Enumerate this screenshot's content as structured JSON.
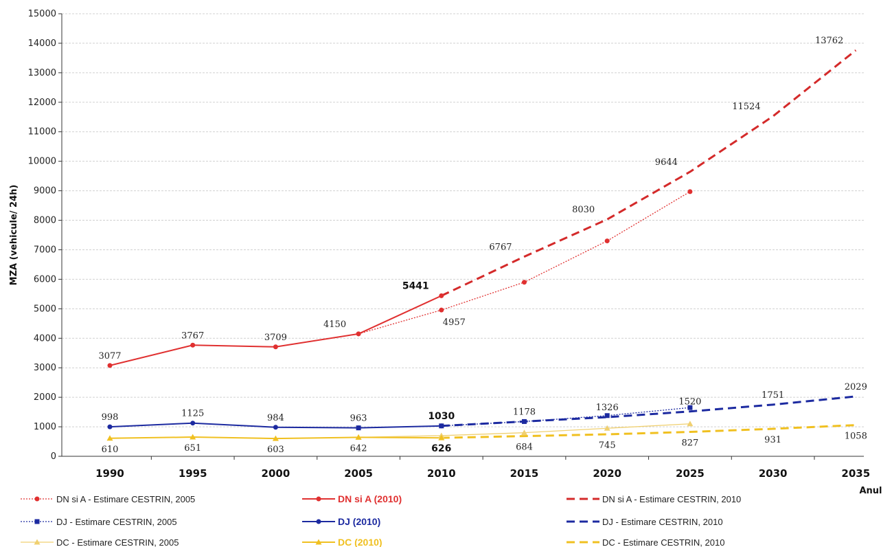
{
  "chart_data": {
    "type": "line",
    "ylabel": "MZA (vehicule/ 24h)",
    "xlabel": "Anul",
    "x": [
      1990,
      1995,
      2000,
      2005,
      2010,
      2015,
      2020,
      2025,
      2030,
      2035
    ],
    "x_tick_labels": [
      "1990",
      "1995",
      "2000",
      "2005",
      "2010",
      "2015",
      "2020",
      "2025",
      "2030",
      "2035"
    ],
    "ylim": [
      0,
      15000
    ],
    "y_ticks": [
      0,
      1000,
      2000,
      3000,
      4000,
      5000,
      6000,
      7000,
      8000,
      9000,
      10000,
      11000,
      12000,
      13000,
      14000,
      15000
    ],
    "y_tick_labels": [
      "0",
      "1000",
      "2000",
      "3000",
      "4000",
      "5000",
      "6000",
      "7000",
      "8000",
      "9000",
      "10000",
      "11000",
      "12000",
      "13000",
      "14000",
      "15000"
    ],
    "grid": true,
    "legend_position": "bottom",
    "series": [
      {
        "name": "DN si A - Estimare CESTRIN, 2005",
        "color": "#e03030",
        "style": "dotted",
        "marker": "circle",
        "x": [
          2005,
          2010,
          2015,
          2020,
          2025
        ],
        "values": [
          4150,
          4957,
          5900,
          7300,
          8970
        ]
      },
      {
        "name": "DN si A (2010)",
        "color": "#e03030",
        "style": "solid",
        "marker": "circle",
        "x": [
          1990,
          1995,
          2000,
          2005,
          2010
        ],
        "values": [
          3077,
          3767,
          3709,
          4150,
          5441
        ]
      },
      {
        "name": "DN si A - Estimare CESTRIN, 2010",
        "color": "#d42a2a",
        "style": "dashed",
        "marker": "none",
        "x": [
          2010,
          2015,
          2020,
          2025,
          2030,
          2035
        ],
        "values": [
          5441,
          6767,
          8030,
          9644,
          11524,
          13762
        ]
      },
      {
        "name": "DJ - Estimare CESTRIN, 2005",
        "color": "#1c2aa0",
        "style": "dotted",
        "marker": "square",
        "x": [
          2005,
          2010,
          2015,
          2020,
          2025
        ],
        "values": [
          963,
          1030,
          1178,
          1380,
          1650
        ]
      },
      {
        "name": "DJ (2010)",
        "color": "#1c2aa0",
        "style": "solid",
        "marker": "circle",
        "x": [
          1990,
          1995,
          2000,
          2005,
          2010
        ],
        "values": [
          998,
          1125,
          984,
          963,
          1030
        ]
      },
      {
        "name": "DJ - Estimare CESTRIN, 2010",
        "color": "#1c2aa0",
        "style": "dashed",
        "marker": "none",
        "x": [
          2010,
          2015,
          2020,
          2025,
          2030,
          2035
        ],
        "values": [
          1030,
          1178,
          1326,
          1520,
          1751,
          2029
        ]
      },
      {
        "name": "DC - Estimare CESTRIN, 2005",
        "color": "#f0d070",
        "style": "solid-thin",
        "marker": "triangle",
        "x": [
          2005,
          2010,
          2015,
          2020,
          2025
        ],
        "values": [
          642,
          700,
          800,
          950,
          1100
        ]
      },
      {
        "name": "DC (2010)",
        "color": "#f0c020",
        "style": "solid",
        "marker": "triangle",
        "x": [
          1990,
          1995,
          2000,
          2005,
          2010
        ],
        "values": [
          610,
          651,
          603,
          642,
          626
        ]
      },
      {
        "name": "DC - Estimare CESTRIN, 2010",
        "color": "#f0c020",
        "style": "dashed",
        "marker": "none",
        "x": [
          2010,
          2015,
          2020,
          2025,
          2030,
          2035
        ],
        "values": [
          626,
          684,
          745,
          827,
          931,
          1058
        ]
      }
    ],
    "annotations": [
      {
        "text": "3077",
        "x": 1990,
        "y": 3077,
        "pos": "above"
      },
      {
        "text": "3767",
        "x": 1995,
        "y": 3767,
        "pos": "above"
      },
      {
        "text": "3709",
        "x": 2000,
        "y": 3709,
        "pos": "above"
      },
      {
        "text": "4150",
        "x": 2005,
        "y": 4150,
        "pos": "above-left"
      },
      {
        "text": "5441",
        "x": 2010,
        "y": 5441,
        "pos": "above-left",
        "bold": true
      },
      {
        "text": "4957",
        "x": 2010,
        "y": 4957,
        "pos": "below-right"
      },
      {
        "text": "6767",
        "x": 2015,
        "y": 6767,
        "pos": "above-left"
      },
      {
        "text": "8030",
        "x": 2020,
        "y": 8030,
        "pos": "above-left"
      },
      {
        "text": "9644",
        "x": 2025,
        "y": 9644,
        "pos": "above-left"
      },
      {
        "text": "11524",
        "x": 2030,
        "y": 11524,
        "pos": "above-left"
      },
      {
        "text": "13762",
        "x": 2035,
        "y": 13762,
        "pos": "above-left"
      },
      {
        "text": "998",
        "x": 1990,
        "y": 998,
        "pos": "above"
      },
      {
        "text": "1125",
        "x": 1995,
        "y": 1125,
        "pos": "above"
      },
      {
        "text": "984",
        "x": 2000,
        "y": 984,
        "pos": "above"
      },
      {
        "text": "963",
        "x": 2005,
        "y": 963,
        "pos": "above"
      },
      {
        "text": "1030",
        "x": 2010,
        "y": 1030,
        "pos": "above",
        "bold": true
      },
      {
        "text": "1178",
        "x": 2015,
        "y": 1178,
        "pos": "above"
      },
      {
        "text": "1326",
        "x": 2020,
        "y": 1326,
        "pos": "above"
      },
      {
        "text": "1520",
        "x": 2025,
        "y": 1520,
        "pos": "above"
      },
      {
        "text": "1751",
        "x": 2030,
        "y": 1751,
        "pos": "above"
      },
      {
        "text": "2029",
        "x": 2035,
        "y": 2029,
        "pos": "above"
      },
      {
        "text": "610",
        "x": 1990,
        "y": 610,
        "pos": "below"
      },
      {
        "text": "651",
        "x": 1995,
        "y": 651,
        "pos": "below"
      },
      {
        "text": "603",
        "x": 2000,
        "y": 603,
        "pos": "below"
      },
      {
        "text": "642",
        "x": 2005,
        "y": 642,
        "pos": "below"
      },
      {
        "text": "626",
        "x": 2010,
        "y": 626,
        "pos": "below",
        "bold": true
      },
      {
        "text": "684",
        "x": 2015,
        "y": 684,
        "pos": "below"
      },
      {
        "text": "745",
        "x": 2020,
        "y": 745,
        "pos": "below"
      },
      {
        "text": "827",
        "x": 2025,
        "y": 827,
        "pos": "below"
      },
      {
        "text": "931",
        "x": 2030,
        "y": 931,
        "pos": "below"
      },
      {
        "text": "1058",
        "x": 2035,
        "y": 1058,
        "pos": "below"
      }
    ]
  }
}
